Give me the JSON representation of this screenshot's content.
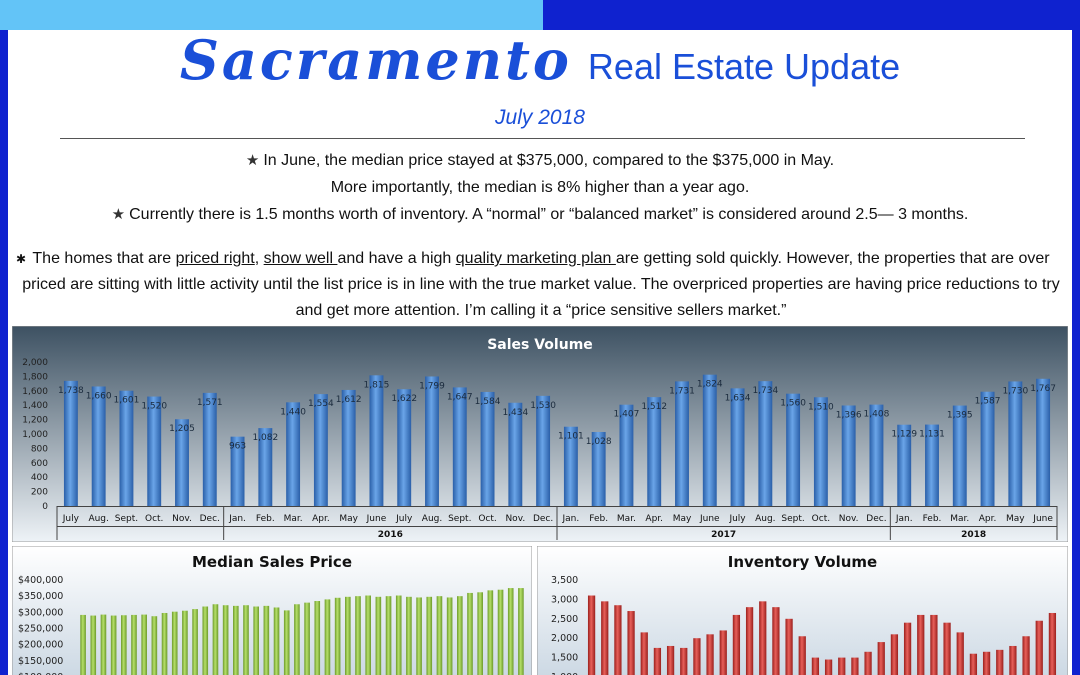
{
  "header": {
    "title_script": "Sacramento",
    "title_rest": "Real Estate Update",
    "subtitle": "July 2018"
  },
  "bullets": {
    "b1_line1": "In June, the median price stayed at $375,000, compared to the $375,000 in May.",
    "b1_line2": "More importantly,  the median is 8% higher than a year ago.",
    "b2": "Currently there is 1.5 months worth of inventory. A “normal” or “balanced market” is considered around 2.5— 3 months."
  },
  "paragraph": {
    "p1": "The homes that are ",
    "u1": "priced right",
    "p2": ", ",
    "u2": "show well ",
    "p3": "and have a high ",
    "u3": "quality marketing plan ",
    "p4": "are getting sold quickly.  However, the properties that are over priced are sitting with little activity until the list price is in line with the true market value.  The overpriced properties are having price reductions to try and get more attention. I’m calling it a “price sensitive sellers market.”"
  },
  "colors": {
    "accent_blue": "#1a4fd8",
    "sales_bar": "#3f7fd2",
    "median_bar": "#8dc63f",
    "inventory_bar": "#c9302c"
  },
  "chart_data": [
    {
      "type": "bar",
      "title": "Sales Volume",
      "categories": [
        "July",
        "Aug.",
        "Sept.",
        "Oct.",
        "Nov.",
        "Dec.",
        "Jan.",
        "Feb.",
        "Mar.",
        "Apr.",
        "May",
        "June",
        "July",
        "Aug.",
        "Sept.",
        "Oct.",
        "Nov.",
        "Dec.",
        "Jan.",
        "Feb.",
        "Mar.",
        "Apr.",
        "May",
        "June",
        "July",
        "Aug.",
        "Sept.",
        "Oct.",
        "Nov.",
        "Dec.",
        "Jan.",
        "Feb.",
        "Mar.",
        "Apr.",
        "May",
        "June"
      ],
      "values": [
        1738,
        1660,
        1601,
        1520,
        1205,
        1571,
        963,
        1082,
        1440,
        1554,
        1612,
        1815,
        1622,
        1799,
        1647,
        1584,
        1434,
        1530,
        1101,
        1028,
        1407,
        1512,
        1731,
        1824,
        1634,
        1734,
        1560,
        1510,
        1396,
        1408,
        1129,
        1131,
        1395,
        1587,
        1730,
        1767
      ],
      "data_labels": [
        "1,738",
        "1,660",
        "1,601",
        "1,520",
        "1,205",
        "1,571",
        "963",
        "1,082",
        "1,440",
        "1,554",
        "1,612",
        "1,815",
        "1,622",
        "1,799",
        "1,647",
        "1,584",
        "1,434",
        "1,530",
        "1,101",
        "1,028",
        "1,407",
        "1,512",
        "1,731",
        "1,824",
        "1,634",
        "1,734",
        "1,560",
        "1,510",
        "1,396",
        "1,408",
        "1,129",
        "1,131",
        "1,395",
        "1,587",
        "1,730",
        "1,767"
      ],
      "ylim": [
        0,
        2000
      ],
      "yticks": [
        "0",
        "200",
        "400",
        "600",
        "800",
        "1,000",
        "1,200",
        "1,400",
        "1,600",
        "1,800",
        "2,000"
      ],
      "year_groups": [
        {
          "label": "",
          "count": 6
        },
        {
          "label": "2016",
          "count": 12
        },
        {
          "label": "2017",
          "count": 12
        },
        {
          "label": "2018",
          "count": 6
        }
      ],
      "grid": false,
      "legend": "none"
    },
    {
      "type": "bar",
      "title": "Median Sales Price",
      "values": [
        292000,
        290000,
        293000,
        290000,
        291000,
        292000,
        293000,
        288000,
        298000,
        302000,
        305000,
        310000,
        318000,
        325000,
        322000,
        320000,
        322000,
        318000,
        320000,
        315000,
        306000,
        325000,
        330000,
        335000,
        340000,
        345000,
        348000,
        350000,
        352000,
        348000,
        350000,
        352000,
        348000,
        346000,
        348000,
        350000,
        346000,
        350000,
        360000,
        362000,
        368000,
        370000,
        375000,
        375000
      ],
      "ylim": [
        100000,
        400000
      ],
      "yticks": [
        "$100,000",
        "$150,000",
        "$200,000",
        "$250,000",
        "$300,000",
        "$350,000",
        "$400,000"
      ],
      "legend": "none"
    },
    {
      "type": "bar",
      "title": "Inventory Volume",
      "values": [
        3100,
        2950,
        2850,
        2700,
        2150,
        1750,
        1800,
        1750,
        2000,
        2100,
        2200,
        2600,
        2800,
        2950,
        2800,
        2500,
        2050,
        1500,
        1450,
        1500,
        1500,
        1650,
        1900,
        2100,
        2400,
        2600,
        2600,
        2400,
        2150,
        1600,
        1650,
        1700,
        1800,
        2050,
        2450,
        2650
      ],
      "ylim": [
        1000,
        3500
      ],
      "yticks": [
        "1,000",
        "1,500",
        "2,000",
        "2,500",
        "3,000",
        "3,500"
      ],
      "legend": "none"
    }
  ]
}
